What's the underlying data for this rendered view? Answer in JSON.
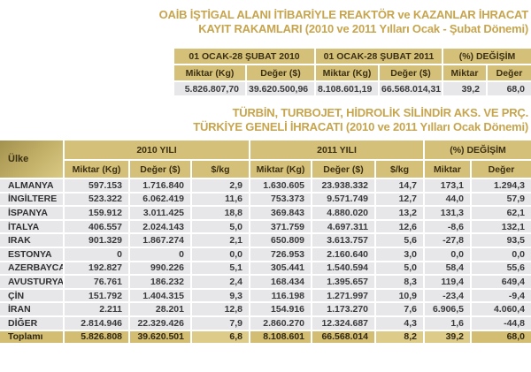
{
  "titles": {
    "report1_line1": "OAİB İŞTİGAL ALANI İTİBARİYLE REAKTÖR ve KAZANLAR İHRACAT",
    "report1_line2": "KAYIT RAKAMLARI (2010 ve 2011 Yılları Ocak - Şubat Dönemi)",
    "report2_line1": "TÜRBİN, TURBOJET, HİDROLİK SİLİNDİR AKS. VE PRÇ.",
    "report2_line2": "TÜRKİYE GENELİ İHRACATI (2010 ve 2011 Yılları Ocak Dönemi)"
  },
  "summary_table": {
    "col_groups": [
      "01 OCAK-28 ŞUBAT 2010",
      "01 OCAK-28 ŞUBAT 2011",
      "(%) DEĞİŞİM"
    ],
    "sub_headers": [
      "Miktar (Kg)",
      "Değer ($)",
      "Miktar (Kg)",
      "Değer ($)",
      "Miktar",
      "Değer"
    ],
    "values": [
      "5.826.807,70",
      "39.620.500,96",
      "8.108.601,19",
      "66.568.014,31",
      "39,2",
      "68,0"
    ]
  },
  "country_table": {
    "country_header": "Ülke",
    "col_groups": [
      "2010 YILI",
      "2011 YILI",
      "(%) DEĞİŞİM"
    ],
    "sub_headers": [
      "Miktar (Kg)",
      "Değer ($)",
      "$/kg",
      "Miktar (Kg)",
      "Değer ($)",
      "$/kg",
      "Miktar",
      "Değer"
    ],
    "rows": [
      {
        "country": "ALMANYA",
        "values": [
          "597.153",
          "1.716.840",
          "2,9",
          "1.630.605",
          "23.938.332",
          "14,7",
          "173,1",
          "1.294,3"
        ]
      },
      {
        "country": "İNGİLTERE",
        "values": [
          "523.322",
          "6.062.419",
          "11,6",
          "753.373",
          "9.571.749",
          "12,7",
          "44,0",
          "57,9"
        ]
      },
      {
        "country": "İSPANYA",
        "values": [
          "159.912",
          "3.011.425",
          "18,8",
          "369.843",
          "4.880.020",
          "13,2",
          "131,3",
          "62,1"
        ]
      },
      {
        "country": "İTALYA",
        "values": [
          "406.557",
          "2.024.143",
          "5,0",
          "371.759",
          "4.697.311",
          "12,6",
          "-8,6",
          "132,1"
        ]
      },
      {
        "country": "IRAK",
        "values": [
          "901.329",
          "1.867.274",
          "2,1",
          "650.809",
          "3.613.757",
          "5,6",
          "-27,8",
          "93,5"
        ]
      },
      {
        "country": "ESTONYA",
        "values": [
          "0",
          "0",
          "0,0",
          "726.953",
          "2.160.640",
          "3,0",
          "0,0",
          "0,0"
        ]
      },
      {
        "country": "AZERBAYCAN",
        "values": [
          "192.827",
          "990.226",
          "5,1",
          "305.441",
          "1.540.594",
          "5,0",
          "58,4",
          "55,6"
        ]
      },
      {
        "country": "AVUSTURYA",
        "values": [
          "76.761",
          "186.232",
          "2,4",
          "168.434",
          "1.395.657",
          "8,3",
          "119,4",
          "649,4"
        ]
      },
      {
        "country": "ÇİN",
        "values": [
          "151.792",
          "1.404.315",
          "9,3",
          "116.198",
          "1.271.997",
          "10,9",
          "-23,4",
          "-9,4"
        ]
      },
      {
        "country": "İRAN",
        "values": [
          "2.211",
          "28.201",
          "12,8",
          "154.916",
          "1.173.270",
          "7,6",
          "6.906,5",
          "4.060,4"
        ]
      },
      {
        "country": "DİĞER",
        "values": [
          "2.814.946",
          "22.329.426",
          "7,9",
          "2.860.270",
          "12.324.687",
          "4,3",
          "1,6",
          "-44,8"
        ]
      }
    ],
    "total": {
      "label": "Toplamı",
      "values": [
        "5.826.808",
        "39.620.501",
        "6,8",
        "8.108.601",
        "66.568.014",
        "8,2",
        "39,2",
        "68,0"
      ],
      "lighter_cells": [
        2,
        5,
        6
      ]
    }
  },
  "colors": {
    "gold_header": "#d2bd72",
    "gold_light": "#ddcb8a",
    "row_background": "#e7e6e9",
    "title_text": "#c7a54e",
    "header_text": "#3a2f14"
  }
}
